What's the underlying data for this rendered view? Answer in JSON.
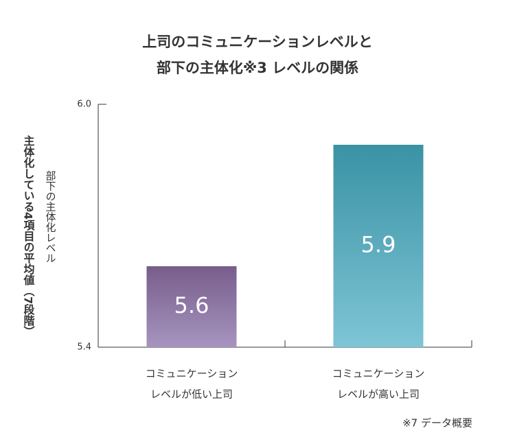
{
  "chart_data": {
    "type": "bar",
    "title": [
      "上司のコミュニケーションレベルと",
      "部下の主体化※3 レベルの関係"
    ],
    "y_label": "部下の主体化レベル",
    "y_sublabel": "主体化している4項目の平均値（7段階）",
    "categories": [
      [
        "コミュニケーション",
        "レベルが低い上司"
      ],
      [
        "コミュニケーション",
        "レベルが高い上司"
      ]
    ],
    "values": [
      5.6,
      5.9
    ],
    "colors": [
      [
        "#785d8b",
        "#a694bf"
      ],
      [
        "#3a92a4",
        "#7ec5d6"
      ]
    ],
    "ylim": [
      5.4,
      6.0
    ],
    "yticks": [
      5.4,
      {
        "value": 6.0,
        "label": "6.0"
      }
    ],
    "note": "※7 データ概要"
  }
}
